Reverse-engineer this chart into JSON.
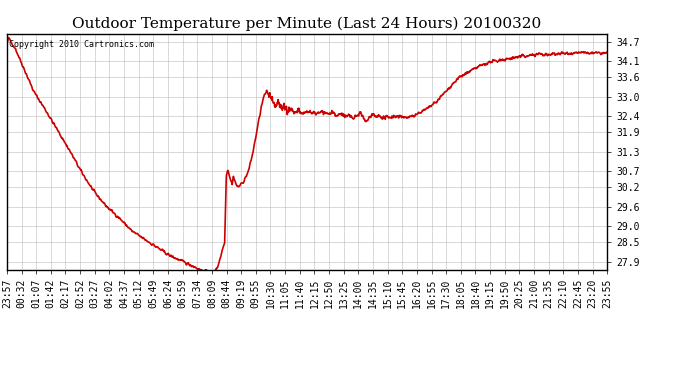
{
  "title": "Outdoor Temperature per Minute (Last 24 Hours) 20100320",
  "copyright_text": "Copyright 2010 Cartronics.com",
  "line_color": "#cc0000",
  "background_color": "#ffffff",
  "grid_color": "#bbbbbb",
  "yticks": [
    27.9,
    28.5,
    29.0,
    29.6,
    30.2,
    30.7,
    31.3,
    31.9,
    32.4,
    33.0,
    33.6,
    34.1,
    34.7
  ],
  "ylim": [
    27.65,
    34.95
  ],
  "xtick_labels": [
    "23:57",
    "00:32",
    "01:07",
    "01:42",
    "02:17",
    "02:52",
    "03:27",
    "04:02",
    "04:37",
    "05:12",
    "05:49",
    "06:24",
    "06:59",
    "07:34",
    "08:09",
    "08:44",
    "09:19",
    "09:55",
    "10:30",
    "11:05",
    "11:40",
    "12:15",
    "12:50",
    "13:25",
    "14:00",
    "14:35",
    "15:10",
    "15:45",
    "16:20",
    "16:55",
    "17:30",
    "18:05",
    "18:40",
    "19:15",
    "19:50",
    "20:25",
    "21:00",
    "21:35",
    "22:10",
    "22:45",
    "23:20",
    "23:55"
  ],
  "line_width": 1.2,
  "title_fontsize": 11,
  "tick_fontsize": 7,
  "copyright_fontsize": 6
}
